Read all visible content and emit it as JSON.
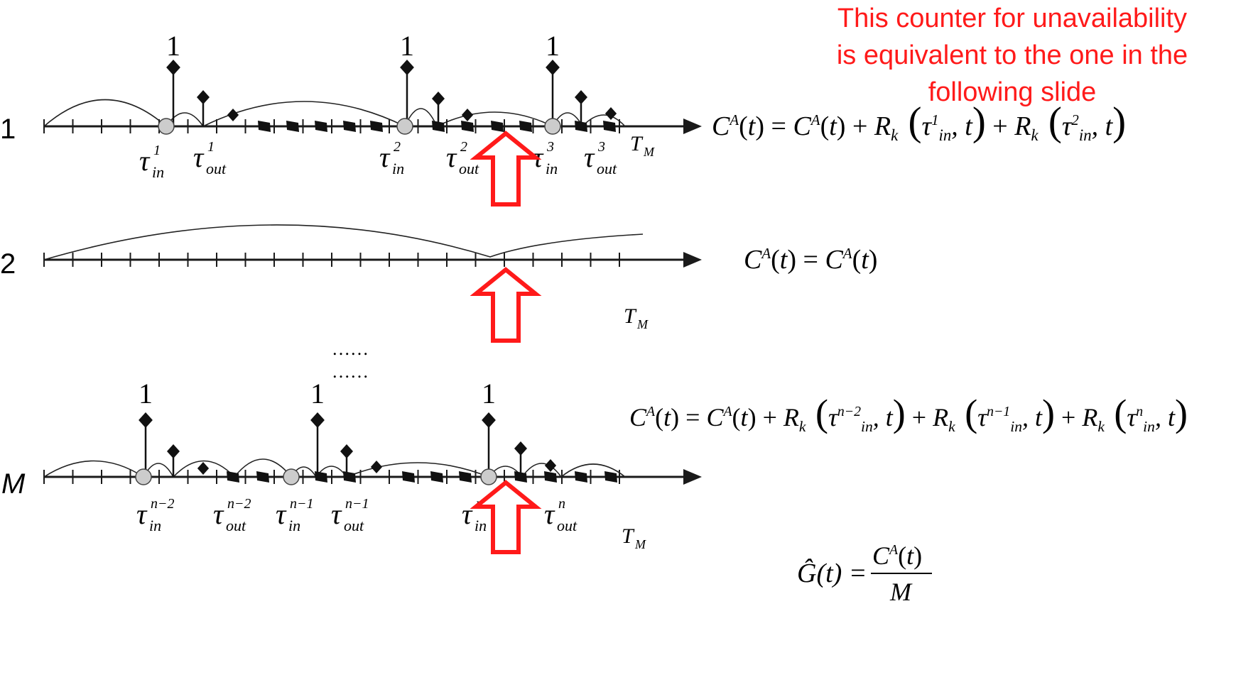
{
  "note": {
    "line1": "This counter for unavailability",
    "line2": "is equivalent to the one in the",
    "line3": "following slide"
  },
  "rows": [
    {
      "label": "1",
      "axis_end_label": "T_M",
      "spike_label": "1",
      "events": [
        {
          "kind": "in",
          "name": "τ",
          "sub": "in",
          "sup": "1"
        },
        {
          "kind": "out",
          "name": "τ",
          "sub": "out",
          "sup": "1"
        },
        {
          "kind": "in",
          "name": "τ",
          "sub": "in",
          "sup": "2"
        },
        {
          "kind": "out",
          "name": "τ",
          "sub": "out",
          "sup": "2"
        },
        {
          "kind": "in",
          "name": "τ",
          "sub": "in",
          "sup": "3"
        },
        {
          "kind": "out",
          "name": "τ",
          "sub": "out",
          "sup": "3"
        }
      ],
      "t_label": "t",
      "equation": "C^A(t) = C^A(t) + R_k(τ_in^1, t) + R_k(τ_in^2, t)"
    },
    {
      "label": "2",
      "axis_end_label": "T_M",
      "t_label": "t",
      "equation": "C^A(t) = C^A(t)"
    },
    {
      "label": "M",
      "axis_end_label": "T_M",
      "spike_label": "1",
      "events": [
        {
          "kind": "in",
          "name": "τ",
          "sub": "in",
          "sup": "n−2"
        },
        {
          "kind": "out",
          "name": "τ",
          "sub": "out",
          "sup": "n−2"
        },
        {
          "kind": "in",
          "name": "τ",
          "sub": "in",
          "sup": "n−1"
        },
        {
          "kind": "out",
          "name": "τ",
          "sub": "out",
          "sup": "n−1"
        },
        {
          "kind": "in",
          "name": "τ",
          "sub": "in",
          "sup": "n"
        },
        {
          "kind": "out",
          "name": "τ",
          "sub": "out",
          "sup": "n"
        }
      ],
      "t_label": "t",
      "equation": "C^A(t) = C^A(t) + R_k(τ_in^{n−2}, t) + R_k(τ_in^{n−1}, t) + R_k(τ_in^n, t)"
    }
  ],
  "ellipsis": "……",
  "estimator": {
    "lhs": "Ĝ(t) =",
    "numerator": "C^A(t)",
    "denominator": "M"
  },
  "colors": {
    "annotation": "#ff1a1a",
    "axis": "#1a1a1a",
    "node_fill": "#cccccc"
  }
}
